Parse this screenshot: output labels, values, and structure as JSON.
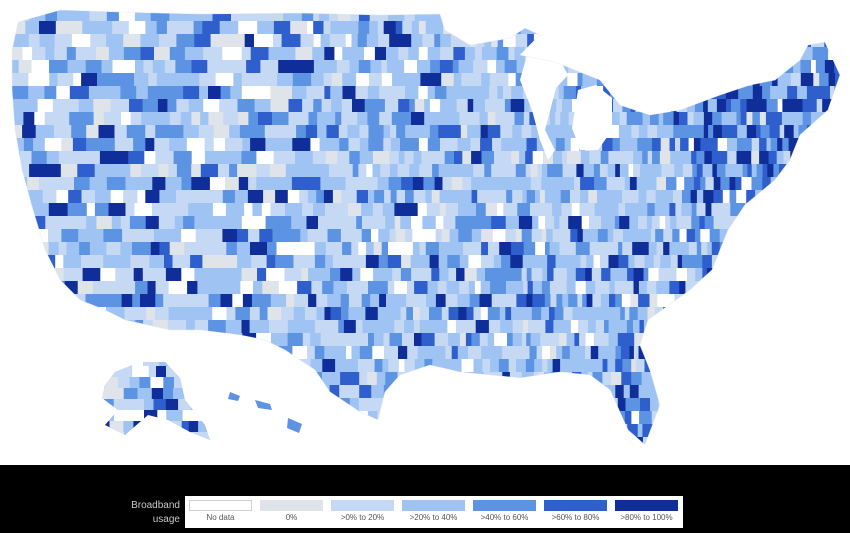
{
  "map": {
    "regions": [
      "contiguous-us",
      "alaska",
      "hawaii"
    ]
  },
  "legend": {
    "title_line1": "Broadband",
    "title_line2": "usage",
    "items": [
      {
        "label": "No data",
        "color": "#ffffff",
        "border": "#cfcfcf"
      },
      {
        "label": "0%",
        "color": "#dfe3ea",
        "border": "#dfe3ea"
      },
      {
        "label": ">0% to 20%",
        "color": "#c5d9f4",
        "border": "#c5d9f4"
      },
      {
        "label": ">20% to 40%",
        "color": "#9fc3f2",
        "border": "#9fc3f2"
      },
      {
        "label": ">40% to 60%",
        "color": "#5d93e3",
        "border": "#5d93e3"
      },
      {
        "label": ">60% to 80%",
        "color": "#2f5fcd",
        "border": "#2f5fcd"
      },
      {
        "label": ">80% to 100%",
        "color": "#102e9a",
        "border": "#102e9a"
      }
    ]
  },
  "colors": {
    "background": "#ffffff",
    "legend_band": "#000000"
  }
}
